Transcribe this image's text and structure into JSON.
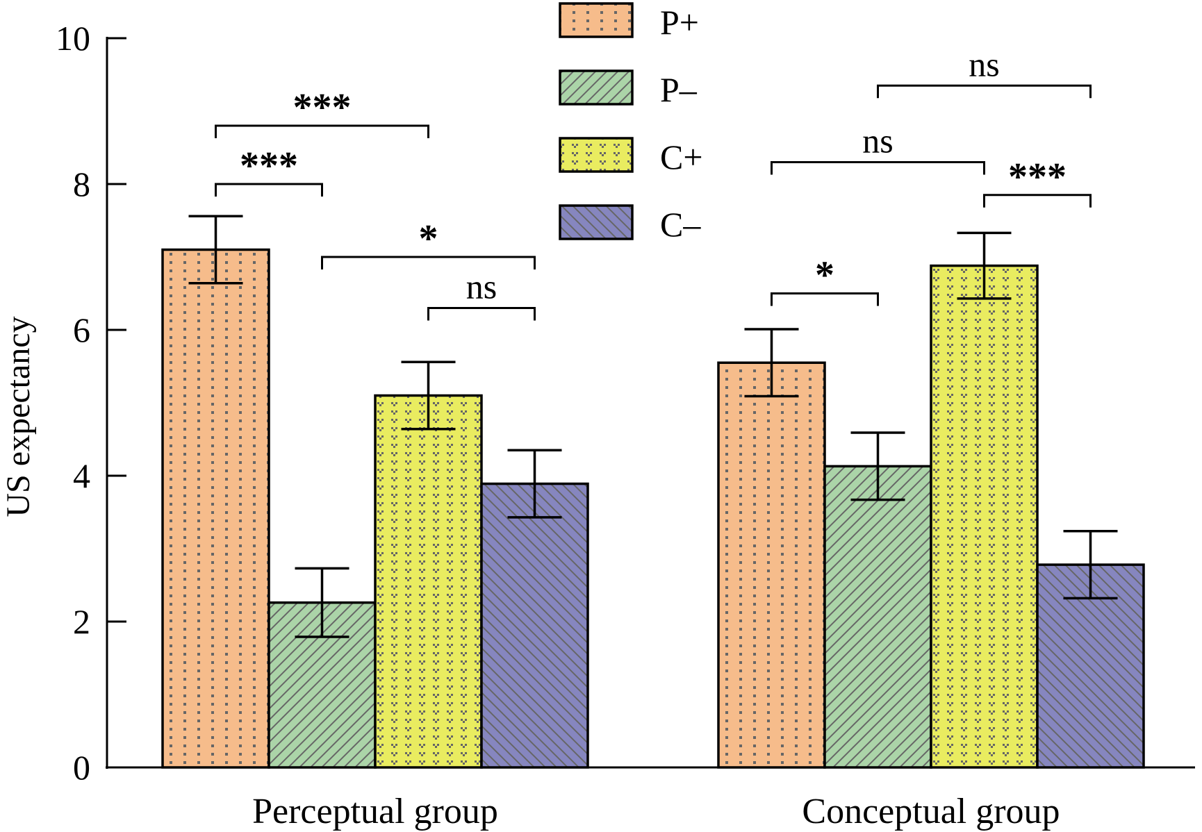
{
  "chart_data": {
    "type": "bar",
    "title": "",
    "xlabel": "",
    "ylabel": "US expectancy",
    "ylim": [
      0,
      10
    ],
    "yticks": [
      0,
      2,
      4,
      6,
      8,
      10
    ],
    "grid": false,
    "legend_position": "top-center",
    "categories": [
      "Perceptual group",
      "Conceptual group"
    ],
    "series": [
      {
        "name": "P+",
        "color": "#F6BC8B",
        "pattern": "dots",
        "values": [
          7.1,
          5.55
        ],
        "error": [
          0.46,
          0.46
        ]
      },
      {
        "name": "P–",
        "color": "#ABD4A8",
        "pattern": "forward-hatch",
        "values": [
          2.26,
          4.13
        ],
        "error": [
          0.47,
          0.46
        ]
      },
      {
        "name": "C+",
        "color": "#E9EC60",
        "pattern": "v-marks",
        "values": [
          5.1,
          6.88
        ],
        "error": [
          0.46,
          0.45
        ]
      },
      {
        "name": "C–",
        "color": "#8686BF",
        "pattern": "back-hatch",
        "values": [
          3.89,
          2.78
        ],
        "error": [
          0.46,
          0.46
        ]
      }
    ],
    "significance": [
      {
        "category": "Perceptual group",
        "from": "P+",
        "to": "P–",
        "label": "***",
        "level": 8.0
      },
      {
        "category": "Perceptual group",
        "from": "P+",
        "to": "C+",
        "label": "***",
        "level": 8.8
      },
      {
        "category": "Perceptual group",
        "from": "P–",
        "to": "C–",
        "label": "*",
        "level": 7.0
      },
      {
        "category": "Perceptual group",
        "from": "C+",
        "to": "C–",
        "label": "ns",
        "level": 6.3
      },
      {
        "category": "Conceptual group",
        "from": "P+",
        "to": "P–",
        "label": "*",
        "level": 6.5
      },
      {
        "category": "Conceptual group",
        "from": "P+",
        "to": "C+",
        "label": "ns",
        "level": 8.3
      },
      {
        "category": "Conceptual group",
        "from": "P–",
        "to": "C–",
        "label": "ns",
        "level": 9.35
      },
      {
        "category": "Conceptual group",
        "from": "C+",
        "to": "C–",
        "label": "***",
        "level": 7.85
      }
    ]
  }
}
